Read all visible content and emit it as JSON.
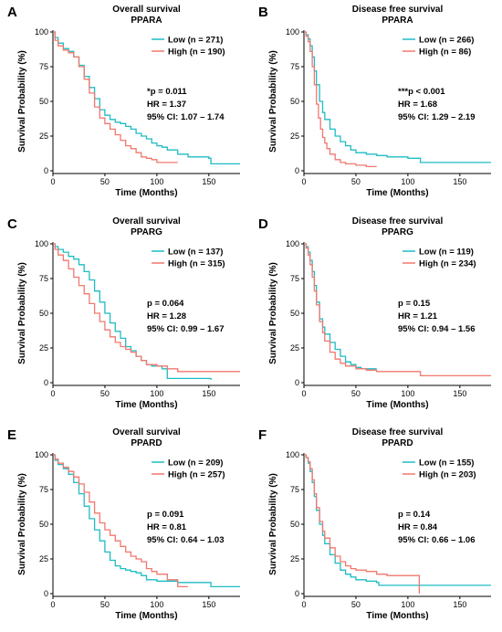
{
  "chart_data": [
    {
      "panel": "A",
      "type": "line",
      "title": "Overall survival",
      "subtitle": "PPARA",
      "xlabel": "Time (Months)",
      "ylabel": "Survival Probability (%)",
      "xlim": [
        0,
        180
      ],
      "ylim": [
        0,
        100
      ],
      "xticks": [
        0,
        50,
        100,
        150
      ],
      "yticks": [
        0,
        25,
        50,
        75,
        100
      ],
      "grid": false,
      "legend_position": "top-right",
      "series": [
        {
          "name": "Low (n = 271)",
          "color": "#1fbcc4",
          "x": [
            0,
            2,
            5,
            10,
            15,
            20,
            25,
            30,
            35,
            40,
            45,
            50,
            55,
            60,
            65,
            70,
            75,
            80,
            85,
            90,
            95,
            100,
            105,
            110,
            120,
            130,
            150,
            152,
            160,
            170,
            180
          ],
          "y": [
            100,
            96,
            92,
            88,
            86,
            82,
            76,
            68,
            60,
            52,
            44,
            40,
            37,
            35,
            34,
            32,
            30,
            27,
            25,
            23,
            20,
            18,
            17,
            15,
            12,
            10,
            9,
            5,
            5,
            5,
            5
          ]
        },
        {
          "name": "High (n = 190)",
          "color": "#f0786e",
          "x": [
            0,
            2,
            5,
            10,
            15,
            20,
            25,
            30,
            35,
            40,
            45,
            50,
            55,
            60,
            65,
            70,
            75,
            80,
            85,
            90,
            95,
            100,
            110,
            120
          ],
          "y": [
            100,
            94,
            90,
            87,
            85,
            82,
            75,
            66,
            56,
            46,
            38,
            34,
            30,
            26,
            22,
            18,
            16,
            13,
            10,
            9,
            8,
            6,
            6,
            6
          ]
        }
      ],
      "stats": [
        "*p = 0.011",
        "HR = 1.37",
        "95% CI: 1.07 – 1.74"
      ]
    },
    {
      "panel": "B",
      "type": "line",
      "title": "Disease free survival",
      "subtitle": "PPARA",
      "xlabel": "Time (Months)",
      "ylabel": "Survival Probability (%)",
      "xlim": [
        0,
        180
      ],
      "ylim": [
        0,
        100
      ],
      "xticks": [
        0,
        50,
        100,
        150
      ],
      "yticks": [
        0,
        25,
        50,
        75,
        100
      ],
      "grid": false,
      "legend_position": "top-right",
      "series": [
        {
          "name": "Low (n = 266)",
          "color": "#1fbcc4",
          "x": [
            0,
            2,
            4,
            6,
            8,
            10,
            12,
            15,
            18,
            20,
            25,
            30,
            35,
            40,
            45,
            50,
            60,
            70,
            80,
            90,
            100,
            110,
            112,
            130,
            150,
            170,
            180
          ],
          "y": [
            100,
            98,
            95,
            90,
            82,
            72,
            62,
            50,
            42,
            37,
            30,
            25,
            21,
            18,
            15,
            13,
            12,
            11,
            10,
            10,
            9,
            9,
            6,
            6,
            6,
            6,
            6
          ]
        },
        {
          "name": "High (n = 86)",
          "color": "#f0786e",
          "x": [
            0,
            2,
            4,
            6,
            8,
            10,
            12,
            14,
            16,
            18,
            20,
            22,
            25,
            30,
            35,
            40,
            50,
            60,
            70
          ],
          "y": [
            100,
            97,
            93,
            86,
            75,
            62,
            48,
            38,
            30,
            24,
            20,
            16,
            12,
            8,
            6,
            5,
            4,
            3,
            3
          ]
        }
      ],
      "stats": [
        "***p < 0.001",
        "HR = 1.68",
        "95% CI: 1.29 – 2.19"
      ]
    },
    {
      "panel": "C",
      "type": "line",
      "title": "Overall survival",
      "subtitle": "PPARG",
      "xlabel": "Time (Months)",
      "ylabel": "Survival Probability (%)",
      "xlim": [
        0,
        180
      ],
      "ylim": [
        0,
        100
      ],
      "xticks": [
        0,
        50,
        100,
        150
      ],
      "yticks": [
        0,
        25,
        50,
        75,
        100
      ],
      "grid": false,
      "legend_position": "top-right",
      "series": [
        {
          "name": "Low (n = 137)",
          "color": "#1fbcc4",
          "x": [
            0,
            2,
            5,
            10,
            15,
            20,
            25,
            30,
            35,
            40,
            45,
            50,
            55,
            60,
            65,
            70,
            75,
            80,
            85,
            90,
            95,
            100,
            105,
            110,
            115,
            130,
            150,
            152
          ],
          "y": [
            100,
            98,
            96,
            94,
            91,
            89,
            85,
            80,
            74,
            66,
            58,
            50,
            43,
            37,
            32,
            26,
            23,
            19,
            16,
            13,
            12,
            12,
            10,
            3,
            3,
            3,
            3,
            2
          ]
        },
        {
          "name": "High (n = 315)",
          "color": "#f0786e",
          "x": [
            0,
            2,
            5,
            10,
            15,
            20,
            25,
            30,
            35,
            40,
            45,
            50,
            55,
            60,
            65,
            70,
            75,
            80,
            85,
            90,
            100,
            110,
            120,
            140,
            160,
            180
          ],
          "y": [
            100,
            96,
            92,
            88,
            82,
            76,
            70,
            64,
            57,
            50,
            44,
            38,
            33,
            29,
            26,
            24,
            22,
            19,
            16,
            13,
            12,
            10,
            8,
            8,
            8,
            8
          ]
        }
      ],
      "stats": [
        "p = 0.064",
        "HR = 1.28",
        "95% CI: 0.99 – 1.67"
      ]
    },
    {
      "panel": "D",
      "type": "line",
      "title": "Disease free survival",
      "subtitle": "PPARG",
      "xlabel": "Time (Months)",
      "ylabel": "Survival Probability (%)",
      "xlim": [
        0,
        180
      ],
      "ylim": [
        0,
        100
      ],
      "xticks": [
        0,
        50,
        100,
        150
      ],
      "yticks": [
        0,
        25,
        50,
        75,
        100
      ],
      "grid": false,
      "legend_position": "top-right",
      "series": [
        {
          "name": "Low (n = 119)",
          "color": "#1fbcc4",
          "x": [
            0,
            2,
            4,
            6,
            8,
            10,
            12,
            15,
            18,
            20,
            25,
            30,
            35,
            40,
            45,
            50,
            55,
            60,
            70
          ],
          "y": [
            100,
            98,
            94,
            88,
            80,
            70,
            58,
            46,
            40,
            35,
            29,
            24,
            19,
            15,
            13,
            11,
            10,
            10,
            10
          ]
        },
        {
          "name": "High (n = 234)",
          "color": "#f0786e",
          "x": [
            0,
            2,
            4,
            6,
            8,
            10,
            12,
            15,
            18,
            20,
            25,
            30,
            35,
            40,
            50,
            60,
            70,
            80,
            100,
            110,
            112,
            130,
            150,
            170,
            180
          ],
          "y": [
            100,
            97,
            92,
            85,
            76,
            66,
            56,
            44,
            36,
            30,
            22,
            17,
            14,
            12,
            10,
            9,
            8,
            8,
            8,
            8,
            5,
            5,
            5,
            5,
            5
          ]
        }
      ],
      "stats": [
        "p = 0.15",
        "HR = 1.21",
        "95% CI: 0.94 – 1.56"
      ]
    },
    {
      "panel": "E",
      "type": "line",
      "title": "Overall survival",
      "subtitle": "PPARD",
      "xlabel": "Time (Months)",
      "ylabel": "Survival Probability (%)",
      "xlim": [
        0,
        180
      ],
      "ylim": [
        0,
        100
      ],
      "xticks": [
        0,
        50,
        100,
        150
      ],
      "yticks": [
        0,
        25,
        50,
        75,
        100
      ],
      "grid": false,
      "legend_position": "top-right",
      "series": [
        {
          "name": "Low (n = 209)",
          "color": "#1fbcc4",
          "x": [
            0,
            2,
            5,
            10,
            15,
            20,
            25,
            30,
            35,
            40,
            45,
            50,
            55,
            60,
            65,
            70,
            75,
            80,
            85,
            90,
            100,
            110,
            120,
            130,
            150,
            152,
            170,
            180
          ],
          "y": [
            100,
            96,
            93,
            90,
            86,
            80,
            72,
            63,
            54,
            46,
            38,
            30,
            24,
            20,
            18,
            17,
            16,
            15,
            13,
            10,
            9,
            9,
            8,
            8,
            8,
            5,
            5,
            5
          ]
        },
        {
          "name": "High (n = 257)",
          "color": "#f0786e",
          "x": [
            0,
            2,
            5,
            10,
            15,
            20,
            25,
            30,
            35,
            40,
            45,
            50,
            55,
            60,
            65,
            70,
            75,
            80,
            85,
            90,
            95,
            100,
            110,
            120,
            130
          ],
          "y": [
            100,
            97,
            94,
            91,
            88,
            84,
            79,
            73,
            66,
            58,
            51,
            46,
            42,
            38,
            34,
            30,
            27,
            25,
            23,
            18,
            16,
            14,
            10,
            5,
            5
          ]
        }
      ],
      "stats": [
        "p = 0.091",
        "HR = 0.81",
        "95% CI: 0.64 – 1.03"
      ]
    },
    {
      "panel": "F",
      "type": "line",
      "title": "Disease free survival",
      "subtitle": "PPARD",
      "xlabel": "Time (Months)",
      "ylabel": "Survival Probability (%)",
      "xlim": [
        0,
        180
      ],
      "ylim": [
        0,
        100
      ],
      "xticks": [
        0,
        50,
        100,
        150
      ],
      "yticks": [
        0,
        25,
        50,
        75,
        100
      ],
      "grid": false,
      "legend_position": "top-right",
      "series": [
        {
          "name": "Low (n = 155)",
          "color": "#1fbcc4",
          "x": [
            0,
            2,
            4,
            6,
            8,
            10,
            12,
            15,
            18,
            20,
            25,
            30,
            35,
            40,
            45,
            50,
            60,
            70,
            72,
            90,
            110,
            130,
            150,
            170,
            180
          ],
          "y": [
            100,
            98,
            94,
            88,
            80,
            70,
            60,
            50,
            42,
            36,
            28,
            22,
            17,
            14,
            12,
            10,
            9,
            8,
            6,
            6,
            6,
            6,
            6,
            6,
            6
          ]
        },
        {
          "name": "High (n = 203)",
          "color": "#f0786e",
          "x": [
            0,
            2,
            4,
            6,
            8,
            10,
            12,
            15,
            18,
            20,
            25,
            30,
            35,
            40,
            45,
            50,
            60,
            70,
            80,
            100,
            110,
            111
          ],
          "y": [
            100,
            98,
            95,
            90,
            82,
            72,
            62,
            52,
            45,
            40,
            33,
            27,
            23,
            20,
            18,
            17,
            16,
            14,
            13,
            13,
            13,
            0
          ]
        }
      ],
      "stats": [
        "p = 0.14",
        "HR = 0.84",
        "95% CI: 0.66 – 1.06"
      ]
    }
  ]
}
